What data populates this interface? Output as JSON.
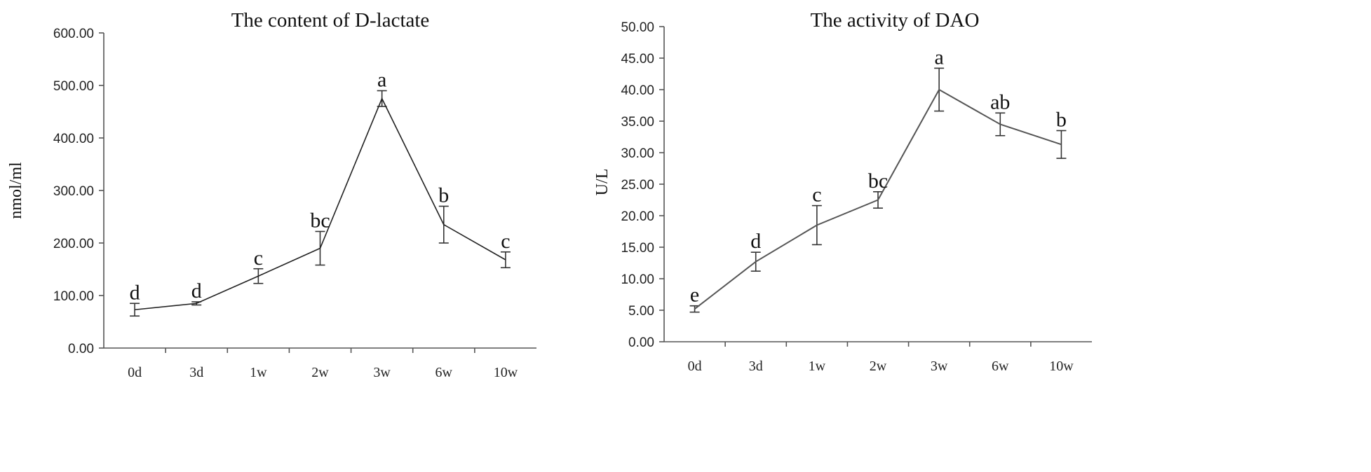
{
  "chart_data": [
    {
      "type": "line",
      "title": "The content of D-lactate",
      "xlabel": "",
      "ylabel": "nmol/ml",
      "ylim": [
        0,
        600
      ],
      "yticks": [
        "0.00",
        "100.00",
        "200.00",
        "300.00",
        "400.00",
        "500.00",
        "600.00"
      ],
      "categories": [
        "0d",
        "3d",
        "1w",
        "2w",
        "3w",
        "6w",
        "10w"
      ],
      "values": [
        73,
        85,
        137,
        190,
        475,
        235,
        168
      ],
      "errors": [
        12,
        3,
        14,
        32,
        15,
        35,
        15
      ],
      "labels": [
        "d",
        "d",
        "c",
        "bc",
        "a",
        "b",
        "c"
      ],
      "grid": false,
      "line_color": "#222222"
    },
    {
      "type": "line",
      "title": "The activity of DAO",
      "xlabel": "",
      "ylabel": "U/L",
      "ylim": [
        0,
        50
      ],
      "yticks": [
        "0.00",
        "5.00",
        "10.00",
        "15.00",
        "20.00",
        "25.00",
        "30.00",
        "35.00",
        "40.00",
        "45.00",
        "50.00"
      ],
      "categories": [
        "0d",
        "3d",
        "1w",
        "2w",
        "3w",
        "6w",
        "10w"
      ],
      "values": [
        5.2,
        12.7,
        18.5,
        22.5,
        40,
        34.5,
        31.3
      ],
      "errors": [
        0.5,
        1.5,
        3.1,
        1.3,
        3.4,
        1.8,
        2.2
      ],
      "labels": [
        "e",
        "d",
        "c",
        "bc",
        "a",
        "ab",
        "b"
      ],
      "grid": false,
      "line_color": "#555555"
    }
  ]
}
